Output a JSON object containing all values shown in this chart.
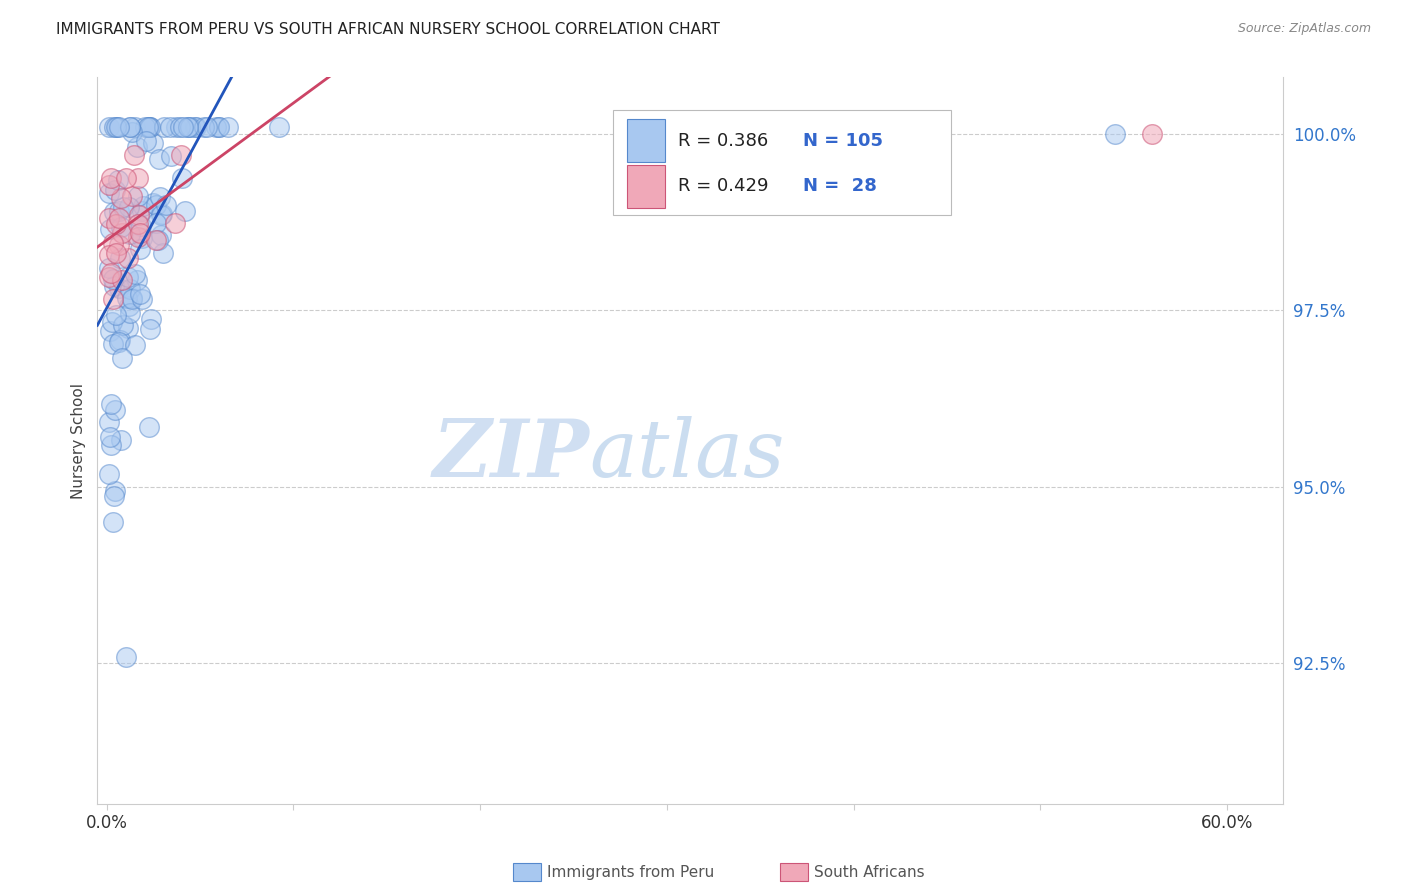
{
  "title": "IMMIGRANTS FROM PERU VS SOUTH AFRICAN NURSERY SCHOOL CORRELATION CHART",
  "source": "Source: ZipAtlas.com",
  "ylabel": "Nursery School",
  "yaxis_labels": [
    "92.5%",
    "95.0%",
    "97.5%",
    "100.0%"
  ],
  "yaxis_values": [
    0.925,
    0.95,
    0.975,
    1.0
  ],
  "xaxis_ticks": [
    0.0,
    0.1,
    0.2,
    0.3,
    0.4,
    0.5,
    0.6
  ],
  "xaxis_ticklabels": [
    "0.0%",
    "",
    "",
    "",
    "",
    "",
    "60.0%"
  ],
  "xlim": [
    -0.005,
    0.63
  ],
  "ylim": [
    0.905,
    1.008
  ],
  "legend_blue_r": "0.386",
  "legend_blue_n": "105",
  "legend_pink_r": "0.429",
  "legend_pink_n": " 28",
  "blue_face_color": "#a8c8f0",
  "blue_edge_color": "#5588cc",
  "pink_face_color": "#f0a8b8",
  "pink_edge_color": "#cc5577",
  "blue_line_color": "#2255bb",
  "pink_line_color": "#cc4466",
  "watermark_zip": "ZIP",
  "watermark_atlas": "atlas",
  "grid_color": "#cccccc",
  "title_color": "#222222",
  "source_color": "#888888",
  "ytick_color": "#3377cc",
  "xtick_color": "#333333",
  "ylabel_color": "#444444",
  "legend_text_color_blue": "#3366cc",
  "legend_text_color_pink": "#cc4466",
  "legend_n_color": "#3366cc",
  "bottom_legend_color": "#555555"
}
